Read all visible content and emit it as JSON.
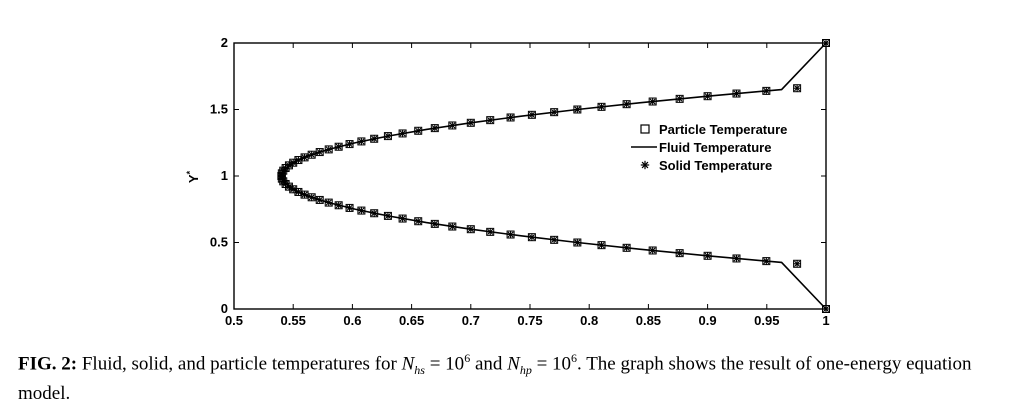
{
  "chart_data": {
    "type": "scatter",
    "title": "",
    "xlabel": "",
    "ylabel": "Y*",
    "xlim": [
      0.5,
      1.0
    ],
    "ylim": [
      0,
      2
    ],
    "x_ticks": [
      "0.5",
      "0.55",
      "0.6",
      "0.65",
      "0.7",
      "0.75",
      "0.8",
      "0.85",
      "0.9",
      "0.95",
      "1"
    ],
    "y_ticks": [
      "0",
      "0.5",
      "1",
      "1.5",
      "2"
    ],
    "grid": false,
    "legend_position": "right-center",
    "series": [
      {
        "name": "Particle Temperature",
        "marker": "square",
        "x": [
          0.54,
          0.5404,
          0.5416,
          0.5436,
          0.5464,
          0.55,
          0.5544,
          0.5596,
          0.5656,
          0.5724,
          0.58,
          0.5884,
          0.5976,
          0.6076,
          0.6184,
          0.63,
          0.6424,
          0.6556,
          0.6696,
          0.6844,
          0.7,
          0.7164,
          0.7336,
          0.7516,
          0.7704,
          0.79,
          0.8104,
          0.8316,
          0.8536,
          0.8764,
          0.9,
          0.9244,
          0.9496,
          0.9756,
          1.0
        ],
        "y": [
          1.0,
          1.02,
          1.04,
          1.06,
          1.08,
          1.1,
          1.12,
          1.14,
          1.16,
          1.18,
          1.2,
          1.22,
          1.24,
          1.26,
          1.28,
          1.3,
          1.32,
          1.34,
          1.36,
          1.38,
          1.4,
          1.42,
          1.44,
          1.46,
          1.48,
          1.5,
          1.52,
          1.54,
          1.56,
          1.58,
          1.6,
          1.62,
          1.64,
          1.66,
          2.0
        ]
      },
      {
        "name": "Fluid Temperature",
        "marker": "line",
        "x": [
          0.54,
          0.5425,
          0.55,
          0.5625,
          0.58,
          0.6025,
          0.63,
          0.6625,
          0.7,
          0.7425,
          0.79,
          0.8425,
          0.9,
          0.9625,
          1.0
        ],
        "y": [
          1.0,
          1.05,
          1.1,
          1.15,
          1.2,
          1.25,
          1.3,
          1.35,
          1.4,
          1.45,
          1.5,
          1.55,
          1.6,
          1.65,
          2.0
        ]
      },
      {
        "name": "Solid Temperature",
        "marker": "asterisk",
        "x": [
          0.54,
          0.5404,
          0.5416,
          0.5436,
          0.5464,
          0.55,
          0.5544,
          0.5596,
          0.5656,
          0.5724,
          0.58,
          0.5884,
          0.5976,
          0.6076,
          0.6184,
          0.63,
          0.6424,
          0.6556,
          0.6696,
          0.6844,
          0.7,
          0.7164,
          0.7336,
          0.7516,
          0.7704,
          0.79,
          0.8104,
          0.8316,
          0.8536,
          0.8764,
          0.9,
          0.9244,
          0.9496,
          0.9756,
          1.0
        ],
        "y": [
          1.0,
          1.02,
          1.04,
          1.06,
          1.08,
          1.1,
          1.12,
          1.14,
          1.16,
          1.18,
          1.2,
          1.22,
          1.24,
          1.26,
          1.28,
          1.3,
          1.32,
          1.34,
          1.36,
          1.38,
          1.4,
          1.42,
          1.44,
          1.46,
          1.48,
          1.5,
          1.52,
          1.54,
          1.56,
          1.58,
          1.6,
          1.62,
          1.64,
          1.66,
          2.0
        ]
      }
    ]
  },
  "caption": {
    "label": "FIG. 2:",
    "text_1": " Fluid, solid, and particle temperatures for ",
    "n1_base": "N",
    "n1_sub": "hs",
    "n1_eq": " = 10",
    "n1_exp": "6",
    "text_2": " and ",
    "n2_base": "N",
    "n2_sub": "hp",
    "n2_eq": " = 10",
    "n2_exp": "6",
    "text_3": ".  The graph shows the result of one-energy equation model."
  }
}
